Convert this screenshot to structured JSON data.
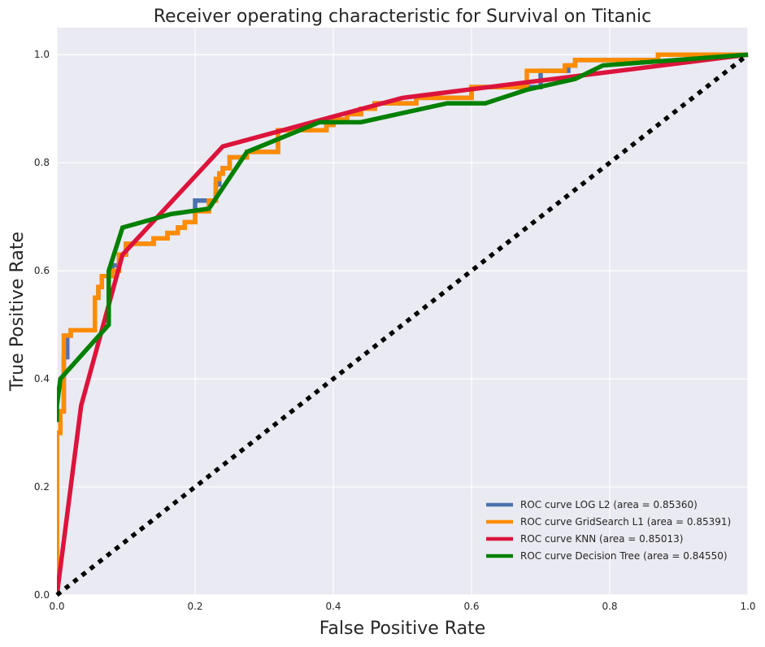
{
  "chart_data": {
    "type": "line",
    "title": "Receiver operating characteristic for Survival on Titanic",
    "xlabel": "False Positive Rate",
    "ylabel": "True Positive Rate",
    "xlim": [
      0.0,
      1.0
    ],
    "ylim": [
      0.0,
      1.05
    ],
    "xticks": [
      0.0,
      0.2,
      0.4,
      0.6,
      0.8,
      1.0
    ],
    "yticks": [
      0.0,
      0.2,
      0.4,
      0.6,
      0.8,
      1.0
    ],
    "xtick_labels": [
      "0.0",
      "0.2",
      "0.4",
      "0.6",
      "0.8",
      "1.0"
    ],
    "ytick_labels": [
      "0.0",
      "0.2",
      "0.4",
      "0.6",
      "0.8",
      "1.0"
    ],
    "grid": true,
    "legend_position": "lower-right",
    "background_color": "#EAEAF2",
    "series": [
      {
        "name": "ROC curve LOG L2 (area = 0.85360)",
        "color": "#4C72B0",
        "style": "step",
        "x": [
          0.0,
          0.0,
          0.005,
          0.005,
          0.01,
          0.01,
          0.015,
          0.015,
          0.02,
          0.02,
          0.055,
          0.055,
          0.06,
          0.06,
          0.065,
          0.065,
          0.08,
          0.08,
          0.09,
          0.09,
          0.1,
          0.1,
          0.14,
          0.14,
          0.16,
          0.16,
          0.175,
          0.175,
          0.185,
          0.185,
          0.2,
          0.2,
          0.23,
          0.23,
          0.235,
          0.235,
          0.24,
          0.24,
          0.25,
          0.25,
          0.26,
          0.26,
          0.275,
          0.275,
          0.32,
          0.32,
          0.39,
          0.39,
          0.4,
          0.4,
          0.42,
          0.42,
          0.44,
          0.44,
          0.46,
          0.46,
          0.52,
          0.52,
          0.6,
          0.6,
          0.7,
          0.7,
          0.74,
          0.74,
          0.75,
          0.75,
          0.87,
          0.87,
          1.0
        ],
        "y": [
          0.0,
          0.3,
          0.3,
          0.34,
          0.34,
          0.44,
          0.44,
          0.48,
          0.48,
          0.49,
          0.49,
          0.55,
          0.55,
          0.57,
          0.57,
          0.59,
          0.59,
          0.61,
          0.61,
          0.63,
          0.63,
          0.65,
          0.65,
          0.66,
          0.66,
          0.67,
          0.67,
          0.68,
          0.68,
          0.69,
          0.69,
          0.73,
          0.73,
          0.76,
          0.76,
          0.78,
          0.78,
          0.79,
          0.79,
          0.81,
          0.81,
          0.81,
          0.81,
          0.82,
          0.82,
          0.86,
          0.86,
          0.87,
          0.87,
          0.88,
          0.88,
          0.89,
          0.89,
          0.9,
          0.9,
          0.91,
          0.91,
          0.92,
          0.92,
          0.94,
          0.94,
          0.97,
          0.97,
          0.98,
          0.98,
          0.99,
          0.99,
          1.0,
          1.0
        ]
      },
      {
        "name": "ROC curve GridSearch L1 (area = 0.85391)",
        "color": "#FF8C00",
        "style": "step",
        "x": [
          0.0,
          0.0,
          0.005,
          0.005,
          0.01,
          0.01,
          0.015,
          0.015,
          0.02,
          0.02,
          0.055,
          0.055,
          0.06,
          0.06,
          0.065,
          0.065,
          0.08,
          0.08,
          0.09,
          0.09,
          0.1,
          0.1,
          0.14,
          0.14,
          0.16,
          0.16,
          0.175,
          0.175,
          0.185,
          0.185,
          0.2,
          0.2,
          0.22,
          0.22,
          0.23,
          0.23,
          0.235,
          0.235,
          0.24,
          0.24,
          0.25,
          0.25,
          0.26,
          0.26,
          0.275,
          0.275,
          0.32,
          0.32,
          0.39,
          0.39,
          0.4,
          0.4,
          0.42,
          0.42,
          0.44,
          0.44,
          0.46,
          0.46,
          0.52,
          0.52,
          0.6,
          0.6,
          0.68,
          0.68,
          0.71,
          0.71,
          0.735,
          0.735,
          0.75,
          0.75,
          0.87,
          0.87,
          1.0
        ],
        "y": [
          0.0,
          0.3,
          0.3,
          0.34,
          0.34,
          0.48,
          0.48,
          0.48,
          0.48,
          0.49,
          0.49,
          0.55,
          0.55,
          0.57,
          0.57,
          0.59,
          0.59,
          0.6,
          0.6,
          0.63,
          0.63,
          0.65,
          0.65,
          0.66,
          0.66,
          0.67,
          0.67,
          0.68,
          0.68,
          0.69,
          0.69,
          0.71,
          0.71,
          0.73,
          0.73,
          0.77,
          0.77,
          0.78,
          0.78,
          0.79,
          0.79,
          0.81,
          0.81,
          0.81,
          0.81,
          0.82,
          0.82,
          0.86,
          0.86,
          0.87,
          0.87,
          0.88,
          0.88,
          0.89,
          0.89,
          0.9,
          0.9,
          0.91,
          0.91,
          0.92,
          0.92,
          0.94,
          0.94,
          0.97,
          0.97,
          0.97,
          0.97,
          0.98,
          0.98,
          0.99,
          0.99,
          1.0,
          1.0
        ]
      },
      {
        "name": "ROC curve KNN (area = 0.85013)",
        "color": "#DC143C",
        "style": "line",
        "x": [
          0.0,
          0.035,
          0.095,
          0.24,
          0.5,
          1.0
        ],
        "y": [
          0.0,
          0.35,
          0.63,
          0.83,
          0.92,
          1.0
        ]
      },
      {
        "name": "ROC curve Decision Tree (area = 0.84550)",
        "color": "#008000",
        "style": "line",
        "x": [
          0.0,
          0.0,
          0.005,
          0.075,
          0.075,
          0.095,
          0.165,
          0.22,
          0.275,
          0.38,
          0.44,
          0.565,
          0.62,
          0.68,
          0.75,
          0.79,
          1.0
        ],
        "y": [
          0.32,
          0.35,
          0.4,
          0.5,
          0.6,
          0.68,
          0.705,
          0.715,
          0.82,
          0.875,
          0.875,
          0.91,
          0.91,
          0.935,
          0.955,
          0.98,
          1.0
        ]
      }
    ],
    "reference_line": {
      "x": [
        0.0,
        1.0
      ],
      "y": [
        0.0,
        1.0
      ],
      "color": "#000000",
      "style": "dotted"
    }
  }
}
